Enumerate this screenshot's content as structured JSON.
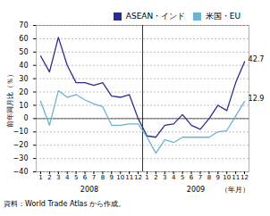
{
  "chart_data": {
    "type": "line",
    "ylabel": "前年同月比（％）",
    "xlabel": "（年月）",
    "source": "資料：World Trade Atlas から作成。",
    "categories": [
      "1",
      "2",
      "3",
      "4",
      "5",
      "6",
      "7",
      "8",
      "9",
      "10",
      "11",
      "12",
      "1",
      "2",
      "3",
      "4",
      "5",
      "6",
      "7",
      "8",
      "9",
      "10",
      "11",
      "12"
    ],
    "year_labels": [
      "2008",
      "2009"
    ],
    "series": [
      {
        "name": "ASEAN・インド",
        "color": "#2c2c8c",
        "values": [
          47,
          35,
          61,
          40,
          27,
          27,
          25,
          27,
          17,
          16,
          18,
          0,
          -13,
          -14,
          -5,
          -4,
          3,
          -5,
          -8,
          0,
          10,
          6,
          27,
          42.7
        ]
      },
      {
        "name": "米国・EU",
        "color": "#6ab4d2",
        "values": [
          13,
          -5,
          21,
          16,
          18,
          14,
          11,
          9,
          -5,
          -5,
          -4,
          -4,
          -14,
          -26,
          -16,
          -18,
          -14,
          -14,
          -14,
          -14,
          -10,
          -9,
          2,
          12.9
        ]
      }
    ],
    "annotations": [
      {
        "text": "42.7",
        "series": "ASEAN・インド"
      },
      {
        "text": "12.9",
        "series": "米国・EU"
      }
    ],
    "ylim": [
      -40,
      70
    ],
    "yticks": [
      {
        "value": -40,
        "label": "−40"
      },
      {
        "value": -30,
        "label": "−30"
      },
      {
        "value": -20,
        "label": "−20"
      },
      {
        "value": -10,
        "label": "−10"
      },
      0,
      10,
      20,
      30,
      40,
      50,
      60,
      70
    ],
    "grid": true,
    "legend": "upper right"
  }
}
